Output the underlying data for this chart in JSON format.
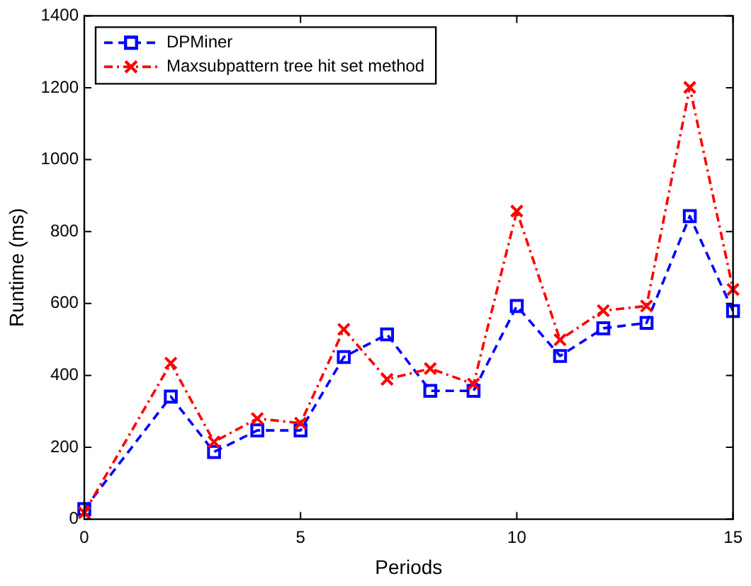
{
  "chart_data": {
    "type": "line",
    "xlabel": "Periods",
    "ylabel": "Runtime (ms)",
    "x": [
      0,
      2,
      3,
      4,
      5,
      6,
      7,
      8,
      9,
      10,
      11,
      12,
      13,
      14,
      15
    ],
    "series": [
      {
        "name": "DPMiner",
        "color": "#0000ff",
        "marker": "square",
        "line_style": "dashed",
        "values": [
          28,
          341,
          187,
          247,
          247,
          451,
          514,
          357,
          357,
          593,
          454,
          531,
          546,
          843,
          579
        ]
      },
      {
        "name": "Maxsubpattern tree hit set method",
        "color": "#ff0000",
        "marker": "cross",
        "line_style": "dashdot",
        "values": [
          18,
          434,
          215,
          280,
          267,
          528,
          389,
          419,
          376,
          857,
          499,
          580,
          593,
          1201,
          639
        ]
      }
    ],
    "xlim": [
      0,
      15
    ],
    "xticks": [
      0,
      5,
      10,
      15
    ],
    "ylim": [
      0,
      1400
    ],
    "yticks": [
      0,
      200,
      400,
      600,
      800,
      1000,
      1200,
      1400
    ],
    "grid": false,
    "legend": "top left"
  }
}
